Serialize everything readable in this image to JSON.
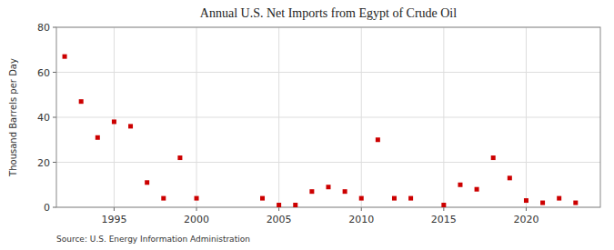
{
  "chart_data": {
    "type": "scatter",
    "title": "Annual U.S. Net Imports from Egypt of Crude Oil",
    "ylabel": "Thousand Barrels per Day",
    "source": "Source: U.S. Energy Information Administration",
    "color": "#cc0000",
    "marker": "square",
    "grid": true,
    "xlim": [
      1991.5,
      2024.5
    ],
    "ylim": [
      0,
      80
    ],
    "xticks": [
      1995,
      2000,
      2005,
      2010,
      2015,
      2020
    ],
    "yticks": [
      0,
      20,
      40,
      60,
      80
    ],
    "x": [
      1992,
      1993,
      1994,
      1995,
      1996,
      1997,
      1998,
      1999,
      2000,
      2004,
      2005,
      2006,
      2007,
      2008,
      2009,
      2010,
      2011,
      2012,
      2013,
      2015,
      2016,
      2017,
      2018,
      2019,
      2020,
      2021,
      2022,
      2023
    ],
    "values": [
      67,
      47,
      31,
      38,
      36,
      11,
      4,
      22,
      4,
      4,
      1,
      1,
      7,
      9,
      7,
      4,
      30,
      4,
      4,
      1,
      10,
      8,
      22,
      13,
      3,
      2,
      4,
      2
    ]
  }
}
